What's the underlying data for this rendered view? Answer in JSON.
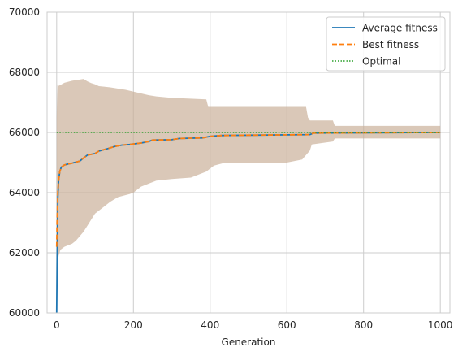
{
  "chart_data": {
    "type": "line",
    "title": "",
    "xlabel": "Generation",
    "ylabel": "",
    "xlim": [
      -25,
      1025
    ],
    "ylim": [
      60000,
      70000
    ],
    "xticks": [
      0,
      200,
      400,
      600,
      800,
      1000
    ],
    "yticks": [
      60000,
      62000,
      64000,
      66000,
      68000,
      70000
    ],
    "xtick_labels": [
      "0",
      "200",
      "400",
      "600",
      "800",
      "1000"
    ],
    "ytick_labels": [
      "60000",
      "62000",
      "64000",
      "66000",
      "68000",
      "70000"
    ],
    "grid": true,
    "legend_position": "top-right",
    "band": {
      "color": "#c8ae96",
      "upper": [
        [
          0,
          66500
        ],
        [
          2,
          67600
        ],
        [
          5,
          67550
        ],
        [
          10,
          67580
        ],
        [
          20,
          67650
        ],
        [
          40,
          67720
        ],
        [
          60,
          67760
        ],
        [
          70,
          67780
        ],
        [
          80,
          67700
        ],
        [
          90,
          67640
        ],
        [
          100,
          67600
        ],
        [
          110,
          67540
        ],
        [
          140,
          67500
        ],
        [
          180,
          67420
        ],
        [
          240,
          67240
        ],
        [
          260,
          67200
        ],
        [
          300,
          67150
        ],
        [
          390,
          67100
        ],
        [
          395,
          66850
        ],
        [
          650,
          66850
        ],
        [
          655,
          66500
        ],
        [
          660,
          66400
        ],
        [
          720,
          66400
        ],
        [
          725,
          66220
        ],
        [
          1000,
          66220
        ]
      ],
      "lower": [
        [
          0,
          62800
        ],
        [
          2,
          61600
        ],
        [
          5,
          61900
        ],
        [
          10,
          62100
        ],
        [
          20,
          62200
        ],
        [
          40,
          62300
        ],
        [
          50,
          62400
        ],
        [
          60,
          62550
        ],
        [
          70,
          62700
        ],
        [
          80,
          62900
        ],
        [
          90,
          63100
        ],
        [
          100,
          63300
        ],
        [
          120,
          63500
        ],
        [
          140,
          63700
        ],
        [
          160,
          63850
        ],
        [
          190,
          63950
        ],
        [
          200,
          64000
        ],
        [
          220,
          64200
        ],
        [
          240,
          64300
        ],
        [
          260,
          64400
        ],
        [
          300,
          64450
        ],
        [
          350,
          64500
        ],
        [
          390,
          64700
        ],
        [
          400,
          64800
        ],
        [
          410,
          64900
        ],
        [
          440,
          65000
        ],
        [
          600,
          65000
        ],
        [
          640,
          65100
        ],
        [
          660,
          65400
        ],
        [
          665,
          65600
        ],
        [
          720,
          65700
        ],
        [
          725,
          65800
        ],
        [
          1000,
          65800
        ]
      ]
    },
    "series": [
      {
        "name": "Average fitness",
        "color": "#1f77b4",
        "style": "solid",
        "points": [
          [
            0,
            60000
          ],
          [
            1,
            61500
          ],
          [
            2,
            62800
          ],
          [
            3,
            63800
          ],
          [
            5,
            64400
          ],
          [
            8,
            64700
          ],
          [
            12,
            64850
          ],
          [
            20,
            64920
          ],
          [
            30,
            64950
          ],
          [
            40,
            64980
          ],
          [
            60,
            65050
          ],
          [
            70,
            65150
          ],
          [
            80,
            65250
          ],
          [
            100,
            65300
          ],
          [
            110,
            65380
          ],
          [
            130,
            65450
          ],
          [
            150,
            65530
          ],
          [
            170,
            65580
          ],
          [
            190,
            65600
          ],
          [
            200,
            65620
          ],
          [
            220,
            65650
          ],
          [
            240,
            65700
          ],
          [
            250,
            65750
          ],
          [
            300,
            65760
          ],
          [
            320,
            65800
          ],
          [
            380,
            65820
          ],
          [
            400,
            65870
          ],
          [
            430,
            65900
          ],
          [
            660,
            65930
          ],
          [
            670,
            65980
          ],
          [
            1000,
            66000
          ]
        ]
      },
      {
        "name": "Best fitness",
        "color": "#ff7f0e",
        "style": "dashed",
        "points": [
          [
            0,
            62200
          ],
          [
            1,
            63000
          ],
          [
            2,
            63500
          ],
          [
            3,
            64000
          ],
          [
            5,
            64400
          ],
          [
            8,
            64700
          ],
          [
            12,
            64850
          ],
          [
            20,
            64920
          ],
          [
            30,
            64950
          ],
          [
            40,
            64980
          ],
          [
            60,
            65050
          ],
          [
            70,
            65150
          ],
          [
            80,
            65250
          ],
          [
            100,
            65300
          ],
          [
            110,
            65380
          ],
          [
            130,
            65450
          ],
          [
            150,
            65530
          ],
          [
            170,
            65580
          ],
          [
            190,
            65600
          ],
          [
            200,
            65620
          ],
          [
            220,
            65650
          ],
          [
            240,
            65700
          ],
          [
            250,
            65750
          ],
          [
            300,
            65760
          ],
          [
            320,
            65800
          ],
          [
            380,
            65820
          ],
          [
            400,
            65870
          ],
          [
            430,
            65900
          ],
          [
            660,
            65930
          ],
          [
            670,
            65980
          ],
          [
            1000,
            66000
          ]
        ]
      },
      {
        "name": "Optimal",
        "color": "#2ca02c",
        "style": "dotted",
        "points": [
          [
            0,
            66000
          ],
          [
            1000,
            66000
          ]
        ]
      }
    ]
  }
}
